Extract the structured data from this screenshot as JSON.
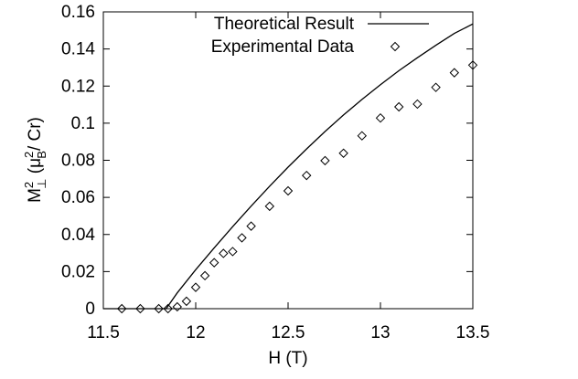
{
  "chart_data": {
    "type": "scatter",
    "xlabel": "H (T)",
    "ylabel": {
      "base": "M",
      "sup": "2",
      "sub": "⊥",
      "paren_open": " (μ",
      "paren_sup": "2",
      "paren_sub": "B",
      "paren_close": "/ Cr)"
    },
    "xlim": [
      11.5,
      13.5
    ],
    "ylim": [
      0,
      0.16
    ],
    "x_ticks": [
      "11.5",
      "12",
      "12.5",
      "13",
      "13.5"
    ],
    "y_ticks": [
      "0",
      "0.02",
      "0.04",
      "0.06",
      "0.08",
      "0.1",
      "0.12",
      "0.14",
      "0.16"
    ],
    "x_tick_values": [
      11.5,
      12,
      12.5,
      13,
      13.5
    ],
    "y_tick_values": [
      0,
      0.02,
      0.04,
      0.06,
      0.08,
      0.1,
      0.12,
      0.14,
      0.16
    ],
    "grid": false,
    "legend_position": "top-right",
    "series": [
      {
        "name": "Theoretical Result",
        "kind": "line",
        "x": [
          11.5,
          11.84,
          11.9,
          12.0,
          12.1,
          12.2,
          12.3,
          12.4,
          12.5,
          12.6,
          12.7,
          12.8,
          12.9,
          13.0,
          13.1,
          13.2,
          13.3,
          13.4,
          13.5
        ],
        "y": [
          0,
          0,
          0.0085,
          0.021,
          0.0328,
          0.0442,
          0.0553,
          0.066,
          0.0763,
          0.0861,
          0.0955,
          0.1044,
          0.1128,
          0.1207,
          0.1283,
          0.1353,
          0.142,
          0.1484,
          0.1535
        ]
      },
      {
        "name": "Experimental Data",
        "kind": "points",
        "marker": "diamond",
        "x": [
          11.6,
          11.7,
          11.8,
          11.85,
          11.9,
          11.95,
          12.0,
          12.05,
          12.1,
          12.15,
          12.2,
          12.25,
          12.3,
          12.4,
          12.5,
          12.6,
          12.7,
          12.8,
          12.9,
          13.0,
          13.1,
          13.2,
          13.3,
          13.4,
          13.5
        ],
        "y": [
          0,
          0,
          0,
          0,
          0.001,
          0.004,
          0.0115,
          0.0178,
          0.0248,
          0.0298,
          0.0308,
          0.0382,
          0.0445,
          0.0552,
          0.0635,
          0.0718,
          0.0798,
          0.0838,
          0.0932,
          0.1028,
          0.1088,
          0.1103,
          0.1193,
          0.1272,
          0.1313
        ]
      }
    ]
  }
}
